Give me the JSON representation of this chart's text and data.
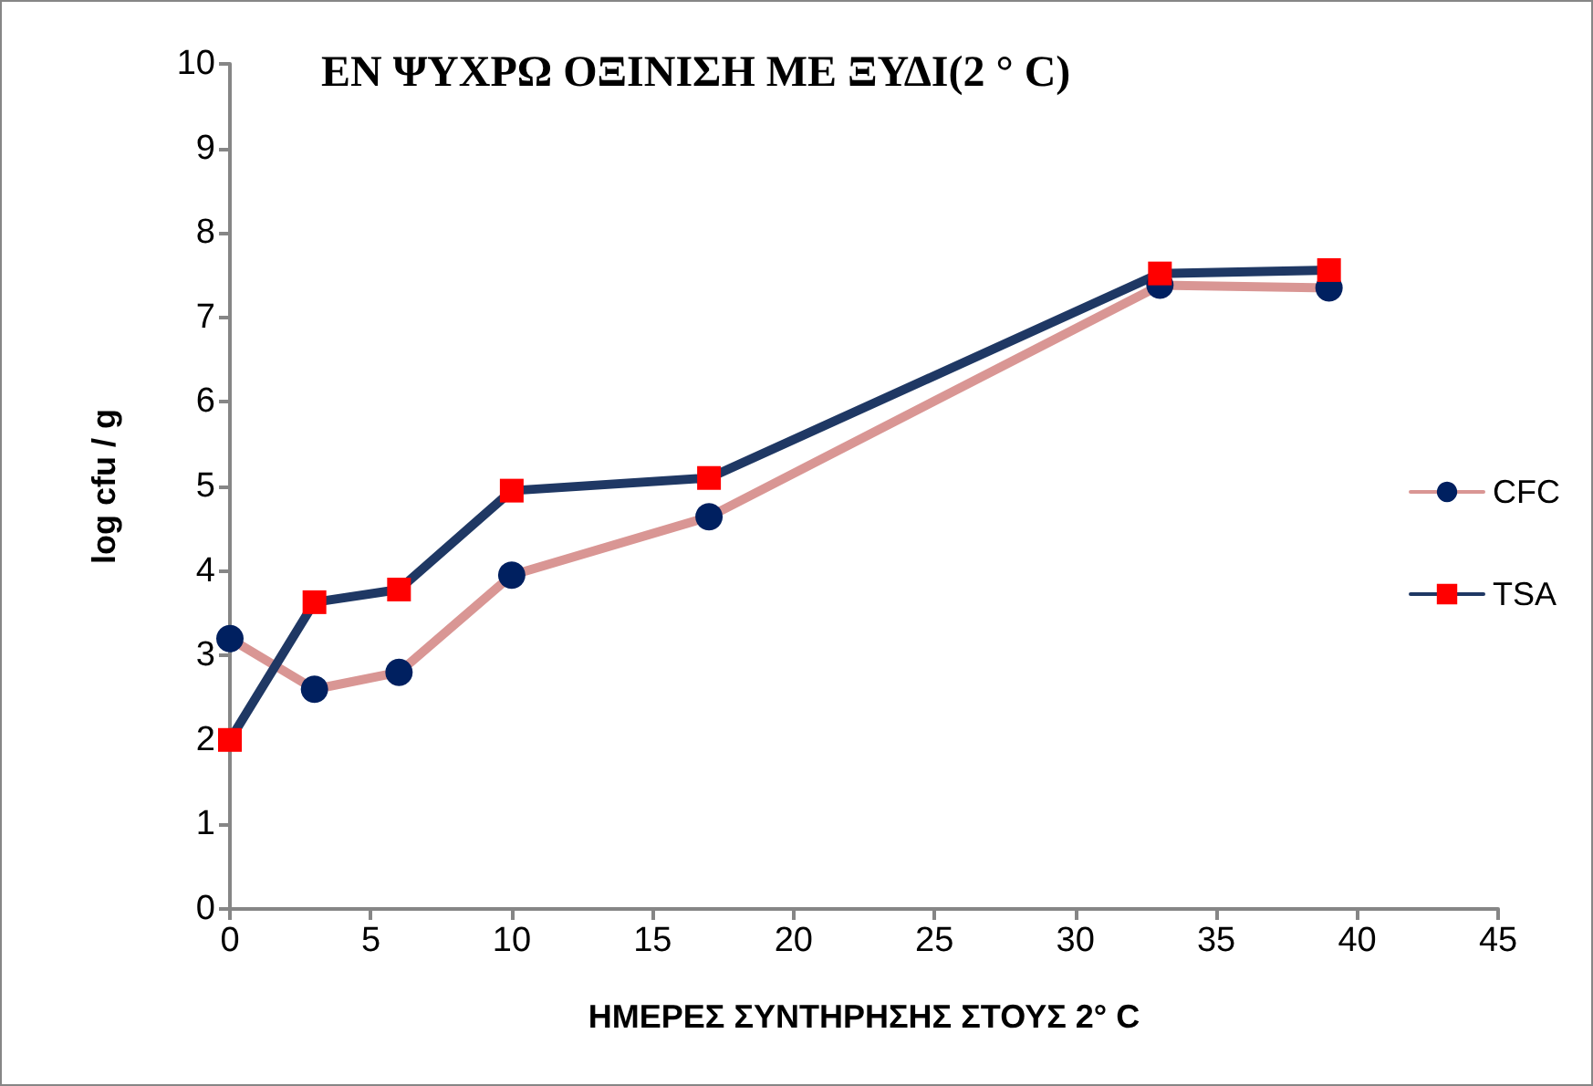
{
  "chart_data": {
    "type": "line",
    "title": "ΕΝ ΨΥΧΡΩ ΟΞΙΝΙΣΗ ΜΕ ΞΥΔΙ(2 ° C)",
    "xlabel": "ΗΜΕΡΕΣ ΣΥΝΤΗΡΗΣΗΣ ΣΤΟΥΣ 2° C",
    "ylabel": "log cfu / g",
    "x": [
      0,
      3,
      6,
      10,
      17,
      33,
      39
    ],
    "series": [
      {
        "name": "CFC",
        "color": "#d99694",
        "colors": [
          "#002060",
          "#002060",
          "#002060",
          "#002060",
          "#002060",
          "#002060",
          "#002060"
        ],
        "marker": "circle",
        "values": [
          3.2,
          2.6,
          2.8,
          3.95,
          4.64,
          7.38,
          7.35
        ]
      },
      {
        "name": "TSA",
        "color": "#1f3864",
        "colors": [
          "#ff0000",
          "#ff0000",
          "#ff0000",
          "#ff0000",
          "#ff0000",
          "#ff0000",
          "#ff0000"
        ],
        "marker": "square",
        "values": [
          2.0,
          3.63,
          3.78,
          4.95,
          5.1,
          7.52,
          7.56
        ]
      }
    ],
    "xlim": [
      0,
      45
    ],
    "xticks": [
      0,
      5,
      10,
      15,
      20,
      25,
      30,
      35,
      40,
      45
    ],
    "ylim": [
      0,
      10
    ],
    "yticks": [
      0,
      1,
      2,
      3,
      4,
      5,
      6,
      7,
      8,
      9,
      10
    ],
    "grid": false,
    "legend": "right"
  }
}
